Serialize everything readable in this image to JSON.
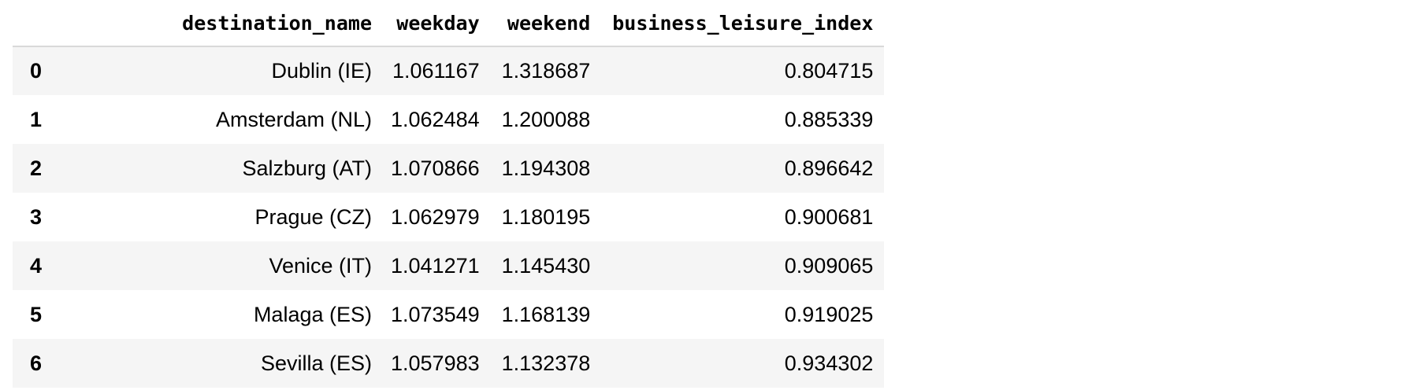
{
  "table": {
    "columns": [
      "",
      "destination_name",
      "weekday",
      "weekend",
      "business_leisure_index"
    ],
    "rows": [
      {
        "index": "0",
        "destination_name": "Dublin (IE)",
        "weekday": "1.061167",
        "weekend": "1.318687",
        "business_leisure_index": "0.804715"
      },
      {
        "index": "1",
        "destination_name": "Amsterdam (NL)",
        "weekday": "1.062484",
        "weekend": "1.200088",
        "business_leisure_index": "0.885339"
      },
      {
        "index": "2",
        "destination_name": "Salzburg (AT)",
        "weekday": "1.070866",
        "weekend": "1.194308",
        "business_leisure_index": "0.896642"
      },
      {
        "index": "3",
        "destination_name": "Prague (CZ)",
        "weekday": "1.062979",
        "weekend": "1.180195",
        "business_leisure_index": "0.900681"
      },
      {
        "index": "4",
        "destination_name": "Venice (IT)",
        "weekday": "1.041271",
        "weekend": "1.145430",
        "business_leisure_index": "0.909065"
      },
      {
        "index": "5",
        "destination_name": "Malaga (ES)",
        "weekday": "1.073549",
        "weekend": "1.168139",
        "business_leisure_index": "0.919025"
      },
      {
        "index": "6",
        "destination_name": "Sevilla (ES)",
        "weekday": "1.057983",
        "weekend": "1.132378",
        "business_leisure_index": "0.934302"
      }
    ]
  },
  "colors": {
    "stripe": "#f5f5f5",
    "header_rule": "#d9d9d9"
  }
}
